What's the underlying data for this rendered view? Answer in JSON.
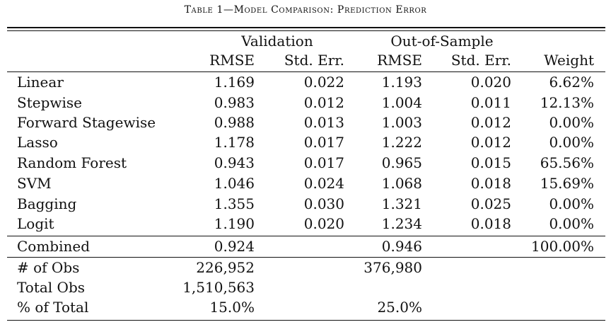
{
  "caption": "Table 1—Model Comparison: Prediction Error",
  "groups": {
    "validation": "Validation",
    "out_of_sample": "Out-of-Sample"
  },
  "headers": [
    "RMSE",
    "Std. Err.",
    "RMSE",
    "Std. Err.",
    "Weight"
  ],
  "rows": [
    {
      "label": "Linear",
      "v_rmse": "1.169",
      "v_se": "0.022",
      "o_rmse": "1.193",
      "o_se": "0.020",
      "weight": "6.62%"
    },
    {
      "label": "Stepwise",
      "v_rmse": "0.983",
      "v_se": "0.012",
      "o_rmse": "1.004",
      "o_se": "0.011",
      "weight": "12.13%"
    },
    {
      "label": "Forward Stagewise",
      "v_rmse": "0.988",
      "v_se": "0.013",
      "o_rmse": "1.003",
      "o_se": "0.012",
      "weight": "0.00%"
    },
    {
      "label": "Lasso",
      "v_rmse": "1.178",
      "v_se": "0.017",
      "o_rmse": "1.222",
      "o_se": "0.012",
      "weight": "0.00%"
    },
    {
      "label": "Random Forest",
      "v_rmse": "0.943",
      "v_se": "0.017",
      "o_rmse": "0.965",
      "o_se": "0.015",
      "weight": "65.56%"
    },
    {
      "label": "SVM",
      "v_rmse": "1.046",
      "v_se": "0.024",
      "o_rmse": "1.068",
      "o_se": "0.018",
      "weight": "15.69%"
    },
    {
      "label": "Bagging",
      "v_rmse": "1.355",
      "v_se": "0.030",
      "o_rmse": "1.321",
      "o_se": "0.025",
      "weight": "0.00%"
    },
    {
      "label": "Logit",
      "v_rmse": "1.190",
      "v_se": "0.020",
      "o_rmse": "1.234",
      "o_se": "0.018",
      "weight": "0.00%"
    }
  ],
  "combined": {
    "label": "Combined",
    "v_rmse": "0.924",
    "o_rmse": "0.946",
    "weight": "100.00%"
  },
  "stats": [
    {
      "label": "# of Obs",
      "v": "226,952",
      "o": "376,980"
    },
    {
      "label": "Total Obs",
      "v": "1,510,563",
      "o": ""
    },
    {
      "label": "% of Total",
      "v": "15.0%",
      "o": "25.0%"
    }
  ]
}
